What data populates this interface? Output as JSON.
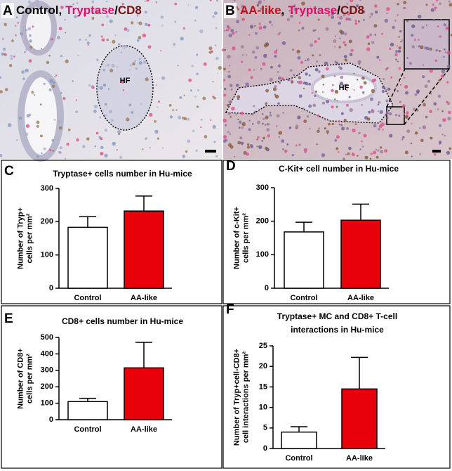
{
  "panels": [
    {
      "label": "A",
      "title": [
        {
          "text": "Control",
          "color": "#000000"
        },
        {
          "text": ",",
          "color": "#000000"
        },
        {
          "text": "Tryptase",
          "color": "#e0106a"
        },
        {
          "text": "/",
          "color": "#000000"
        },
        {
          "text": "CD8",
          "color": "#7a1010"
        }
      ],
      "annotation": "HF"
    },
    {
      "label": "B",
      "title": [
        {
          "text": "AA-like",
          "color": "#c0101a"
        },
        {
          "text": ",",
          "color": "#000000"
        },
        {
          "text": "Tryptase",
          "color": "#e0106a"
        },
        {
          "text": "/",
          "color": "#000000"
        },
        {
          "text": "CD8",
          "color": "#7a1010"
        }
      ],
      "annotation": "HF"
    }
  ],
  "chart_data": [
    {
      "type": "bar",
      "panel": "C",
      "title": [
        "Tryptase+ cells number in Hu-mice"
      ],
      "ylabel": [
        "Number of Tryp+",
        "cells per mm²"
      ],
      "categories": [
        "Control",
        "AA-like"
      ],
      "values": [
        183,
        232
      ],
      "errors": [
        32,
        45
      ],
      "colors": [
        "#ffffff",
        "#e8000b"
      ],
      "ylim": [
        0,
        300
      ],
      "yticks": [
        0,
        100,
        200,
        300
      ]
    },
    {
      "type": "bar",
      "panel": "D",
      "title": [
        "C-Kit+ cell number in Hu-mice"
      ],
      "ylabel": [
        "Number of c-Kit+",
        "cells per mm²"
      ],
      "categories": [
        "Control",
        "AA-like"
      ],
      "values": [
        168,
        203
      ],
      "errors": [
        29,
        48
      ],
      "colors": [
        "#ffffff",
        "#e8000b"
      ],
      "ylim": [
        0,
        300
      ],
      "yticks": [
        0,
        100,
        200,
        300
      ]
    },
    {
      "type": "bar",
      "panel": "E",
      "title": [
        "CD8+ cells number in Hu-mice"
      ],
      "ylabel": [
        "Number of CD8+",
        "cells per mm²"
      ],
      "categories": [
        "Control",
        "AA-like"
      ],
      "values": [
        110,
        315
      ],
      "errors": [
        20,
        155
      ],
      "colors": [
        "#ffffff",
        "#e8000b"
      ],
      "ylim": [
        0,
        500
      ],
      "yticks": [
        0,
        100,
        200,
        300,
        400,
        500
      ]
    },
    {
      "type": "bar",
      "panel": "F",
      "title": [
        "Tryptase+ MC and CD8+ T-cell",
        "interactions in Hu-mice"
      ],
      "ylabel": [
        "Number of Tryp+cell-CD8+",
        "cell interactions per mm²"
      ],
      "categories": [
        "Control",
        "AA-like"
      ],
      "values": [
        4,
        14.5
      ],
      "errors": [
        1.3,
        7.7
      ],
      "colors": [
        "#ffffff",
        "#e8000b"
      ],
      "ylim": [
        0,
        25
      ],
      "yticks": [
        0,
        5,
        10,
        15,
        20,
        25
      ]
    }
  ]
}
